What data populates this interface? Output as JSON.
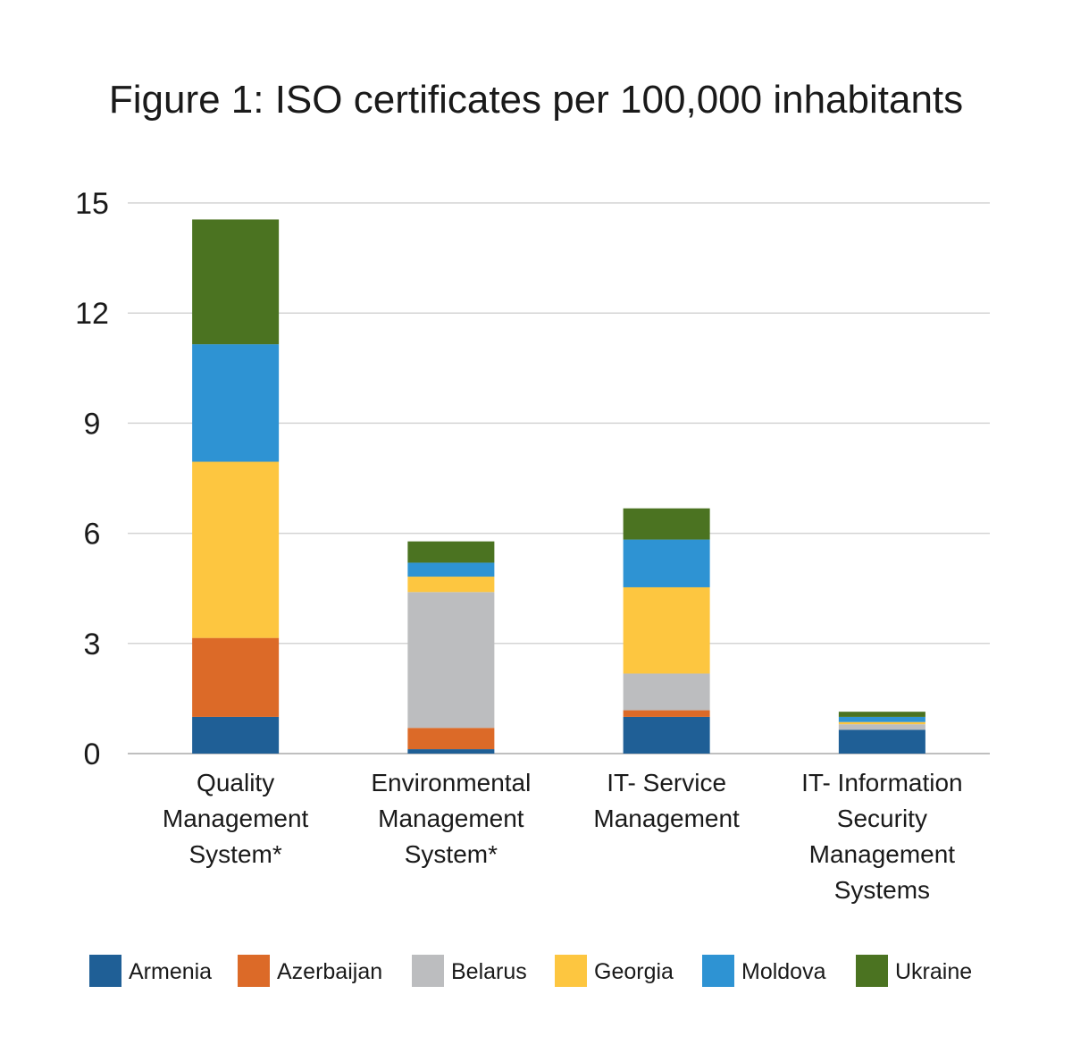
{
  "chart_data": {
    "type": "bar",
    "stacked": true,
    "title": "Figure 1: ISO certificates per 100,000 inhabitants",
    "xlabel": "",
    "ylabel": "",
    "ylim": [
      0,
      15
    ],
    "yticks": [
      0,
      3,
      6,
      9,
      12,
      15
    ],
    "grid": true,
    "legend_position": "bottom",
    "categories": [
      [
        "Quality",
        "Management",
        "System*"
      ],
      [
        "Environmental",
        "Management",
        "System*"
      ],
      [
        "IT- Service",
        "Management"
      ],
      [
        "IT- Information",
        "Security",
        "Management",
        "Systems"
      ]
    ],
    "series": [
      {
        "name": "Armenia",
        "color": "#1f5f96",
        "values": [
          1.0,
          0.12,
          1.0,
          0.65
        ]
      },
      {
        "name": "Azerbaijan",
        "color": "#dc6a28",
        "values": [
          2.15,
          0.58,
          0.18,
          0.0
        ]
      },
      {
        "name": "Belarus",
        "color": "#bcbdbf",
        "values": [
          0.0,
          3.7,
          1.0,
          0.15
        ]
      },
      {
        "name": "Georgia",
        "color": "#fdc640",
        "values": [
          4.8,
          0.42,
          2.35,
          0.06
        ]
      },
      {
        "name": "Moldova",
        "color": "#2e93d3",
        "values": [
          3.2,
          0.38,
          1.3,
          0.14
        ]
      },
      {
        "name": "Ukraine",
        "color": "#4b7321",
        "values": [
          3.4,
          0.58,
          0.85,
          0.14
        ]
      }
    ]
  }
}
